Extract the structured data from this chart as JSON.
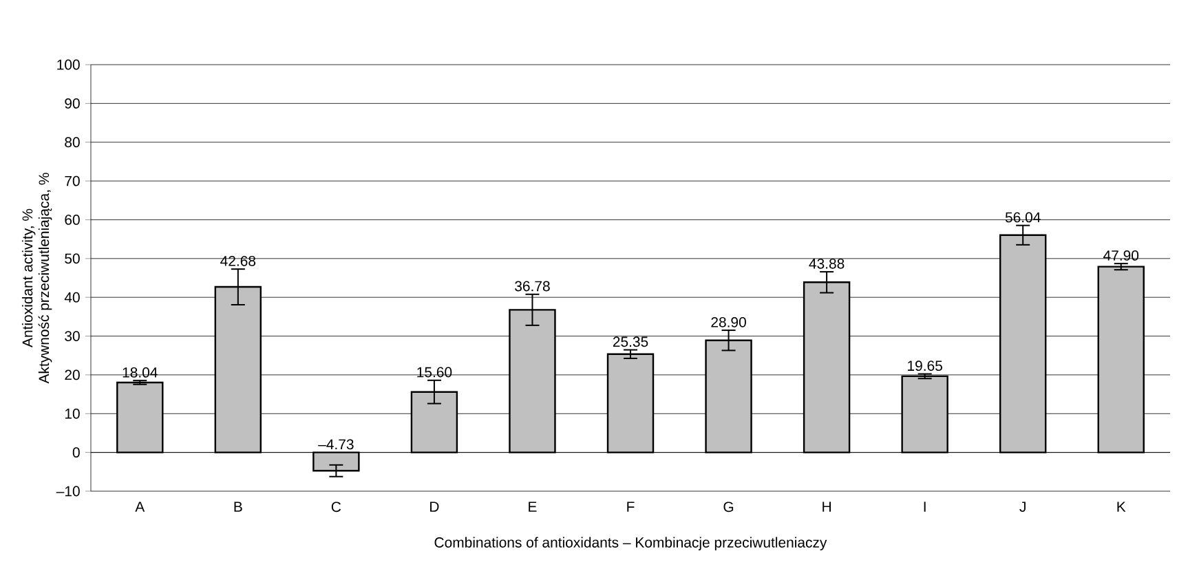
{
  "chart_data": {
    "type": "bar",
    "xlabel": "Combinations of antioxidants – Kombinacje przeciwutleniaczy",
    "ylabel": "Antioxidant activity, %\nAktywność przeciwutleniająca, %",
    "categories": [
      "A",
      "B",
      "C",
      "D",
      "E",
      "F",
      "G",
      "H",
      "I",
      "J",
      "K"
    ],
    "values": [
      18.04,
      42.68,
      -4.73,
      15.6,
      36.78,
      25.35,
      28.9,
      43.88,
      19.65,
      56.04,
      47.9
    ],
    "value_labels": [
      "18.04",
      "42.68",
      "–4.73",
      "15.60",
      "36.78",
      "25.35",
      "28.90",
      "43.88",
      "19.65",
      "56.04",
      "47.90"
    ],
    "errors": [
      0.5,
      4.6,
      1.5,
      3,
      4,
      1.1,
      2.6,
      2.7,
      0.6,
      2.5,
      0.8
    ],
    "color": "#c0c0c0",
    "ylim": [
      -10,
      100
    ],
    "yticks": [
      {
        "value": -10,
        "label": "–10"
      },
      0,
      10,
      20,
      30,
      40,
      50,
      60,
      70,
      80,
      90,
      100
    ],
    "grid": "y"
  }
}
